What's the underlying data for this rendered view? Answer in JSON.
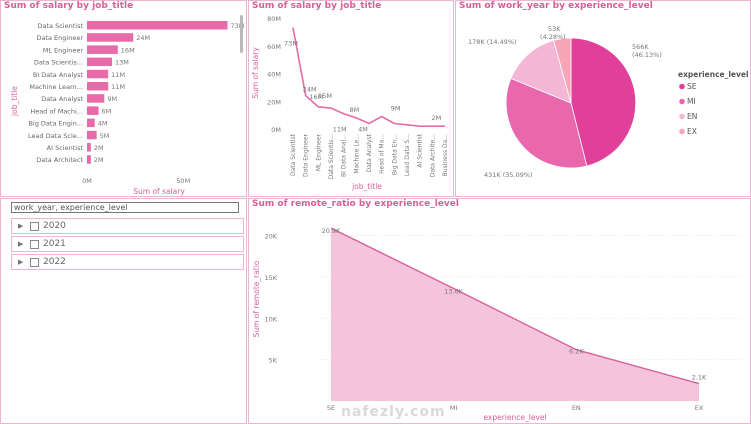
{
  "colors": {
    "accent": "#e86aa8",
    "accent_light": "#f5b8d6",
    "title": "#d6609a"
  },
  "bar_chart": {
    "title": "Sum of salary by job_title",
    "chart_data": {
      "type": "bar",
      "orientation": "horizontal",
      "title": "Sum of salary by job_title",
      "xlabel": "Sum of salary",
      "ylabel": "job_title",
      "categories": [
        "Data Scientist",
        "Data Engineer",
        "ML Engineer",
        "Data Scientis...",
        "BI Data Analyst",
        "Machine Learn...",
        "Data Analyst",
        "Head of Machi...",
        "Big Data Engin...",
        "Lead Data Scie...",
        "AI Scientist",
        "Data Architect"
      ],
      "values": [
        73,
        24,
        16,
        13,
        11,
        11,
        9,
        6,
        4,
        5,
        2,
        2
      ],
      "data_labels": [
        "73M",
        "24M",
        "16M",
        "13M",
        "11M",
        "11M",
        "9M",
        "6M",
        "4M",
        "5M",
        "2M",
        "2M"
      ],
      "x_ticks": [
        "0M",
        "50M"
      ],
      "xlim": [
        0,
        80
      ]
    }
  },
  "line_chart": {
    "title": "Sum of salary by job_title",
    "chart_data": {
      "type": "line",
      "title": "Sum of salary by job_title",
      "xlabel": "job_title",
      "ylabel": "Sum of salary",
      "categories": [
        "Data Scientist",
        "Data Engineer",
        "ML Engineer",
        "Data Scientis...",
        "BI Data Anal...",
        "Machine Le...",
        "Data Analyst",
        "Head of Ma...",
        "Big Data En...",
        "Lead Data S...",
        "AI Scientist",
        "Data Archite...",
        "Business Da..."
      ],
      "values": [
        73,
        24,
        16,
        15,
        11,
        8,
        4,
        9,
        4,
        3,
        2,
        2,
        2
      ],
      "data_labels": [
        "73M",
        "24M",
        "16M",
        "15M",
        "11M",
        "8M",
        "4M",
        "9M",
        "",
        "",
        "",
        "2M",
        ""
      ],
      "y_ticks": [
        "0M",
        "20M",
        "40M",
        "60M",
        "80M"
      ],
      "ylim": [
        0,
        80
      ]
    }
  },
  "pie_chart": {
    "title": "Sum of work_year by experience_level",
    "chart_data": {
      "type": "pie",
      "title": "Sum of work_year by experience_level",
      "slices": [
        {
          "name": "SE",
          "value": 566,
          "label_value": "566K",
          "label_pct": "(46.13%)",
          "color": "#e0409a"
        },
        {
          "name": "MI",
          "value": 431,
          "label_value": "431K (35.09%)",
          "label_pct": "",
          "color": "#e867ad"
        },
        {
          "name": "EN",
          "value": 178,
          "label_value": "178K (14.49%)",
          "label_pct": "",
          "color": "#f3b6d4"
        },
        {
          "name": "EX",
          "value": 53,
          "label_value": "53K",
          "label_pct": "(4.28%)",
          "color": "#f7a6b8"
        }
      ]
    },
    "legend_title": "experience_level",
    "legend": [
      {
        "name": "SE",
        "color": "#e0409a"
      },
      {
        "name": "MI",
        "color": "#e867ad"
      },
      {
        "name": "EN",
        "color": "#f3b6d4"
      },
      {
        "name": "EX",
        "color": "#f7a6b8"
      }
    ]
  },
  "slicer": {
    "header": "work_year, experience_level",
    "items": [
      {
        "label": "2020",
        "expand": "▶"
      },
      {
        "label": "2021",
        "expand": "▶"
      },
      {
        "label": "2022",
        "expand": "▶"
      }
    ]
  },
  "area_chart": {
    "title": "Sum of remote_ratio by experience_level",
    "chart_data": {
      "type": "area",
      "title": "Sum of remote_ratio by experience_level",
      "xlabel": "experience_level",
      "ylabel": "Sum of remote_ratio",
      "categories": [
        "SE",
        "MI",
        "EN",
        "EX"
      ],
      "values": [
        20.9,
        13.6,
        6.2,
        2.1
      ],
      "data_labels": [
        "20.9K",
        "13.6K",
        "6.2K",
        "2.1K"
      ],
      "y_ticks": [
        "5K",
        "10K",
        "15K",
        "20K"
      ],
      "ylim": [
        0,
        22
      ]
    }
  },
  "watermark": {
    "text": "nafezly.com"
  }
}
